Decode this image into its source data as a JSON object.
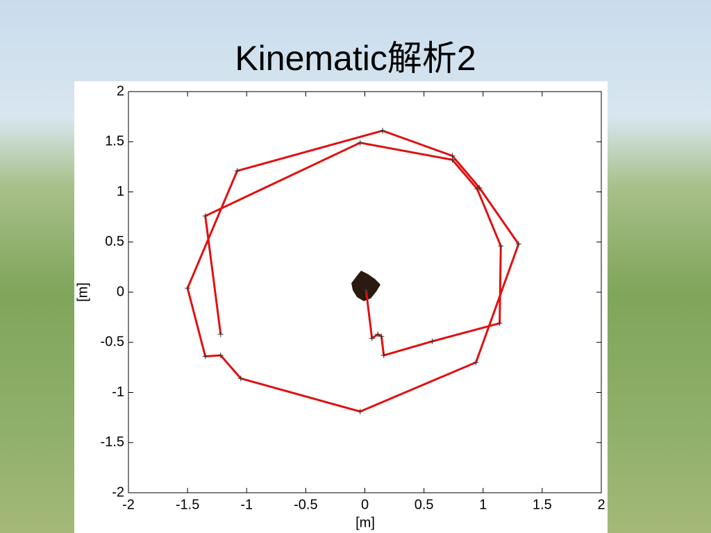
{
  "chart_data": {
    "type": "line",
    "title": "Kinematic解析2",
    "x_label": "[m]",
    "y_label": "[m]",
    "x": [
      0.01,
      0.06,
      0.11,
      0.14,
      0.16,
      0.57,
      1.14,
      1.15,
      0.95,
      0.74,
      -0.04,
      -1.35,
      -1.22,
      null,
      0.15,
      0.74,
      0.97,
      1.3,
      0.94,
      -0.04,
      -1.05,
      -1.22,
      -1.35,
      -1.5,
      -1.08,
      0.15
    ],
    "values": [
      0.02,
      -0.46,
      -0.42,
      -0.44,
      -0.63,
      -0.49,
      -0.31,
      0.46,
      1.03,
      1.32,
      1.49,
      0.76,
      -0.42,
      null,
      1.61,
      1.36,
      1.04,
      0.48,
      -0.7,
      -1.19,
      -0.86,
      -0.63,
      -0.64,
      0.04,
      1.21,
      1.61
    ],
    "color": "#e01010",
    "xlim": [
      -2,
      2
    ],
    "ylim": [
      -2,
      2
    ],
    "xticks": [
      -2,
      -1.5,
      -1,
      -0.5,
      0,
      0.5,
      1,
      1.5,
      2
    ],
    "yticks": [
      -2,
      -1.5,
      -1,
      -0.5,
      0,
      0.5,
      1,
      1.5,
      2
    ]
  }
}
